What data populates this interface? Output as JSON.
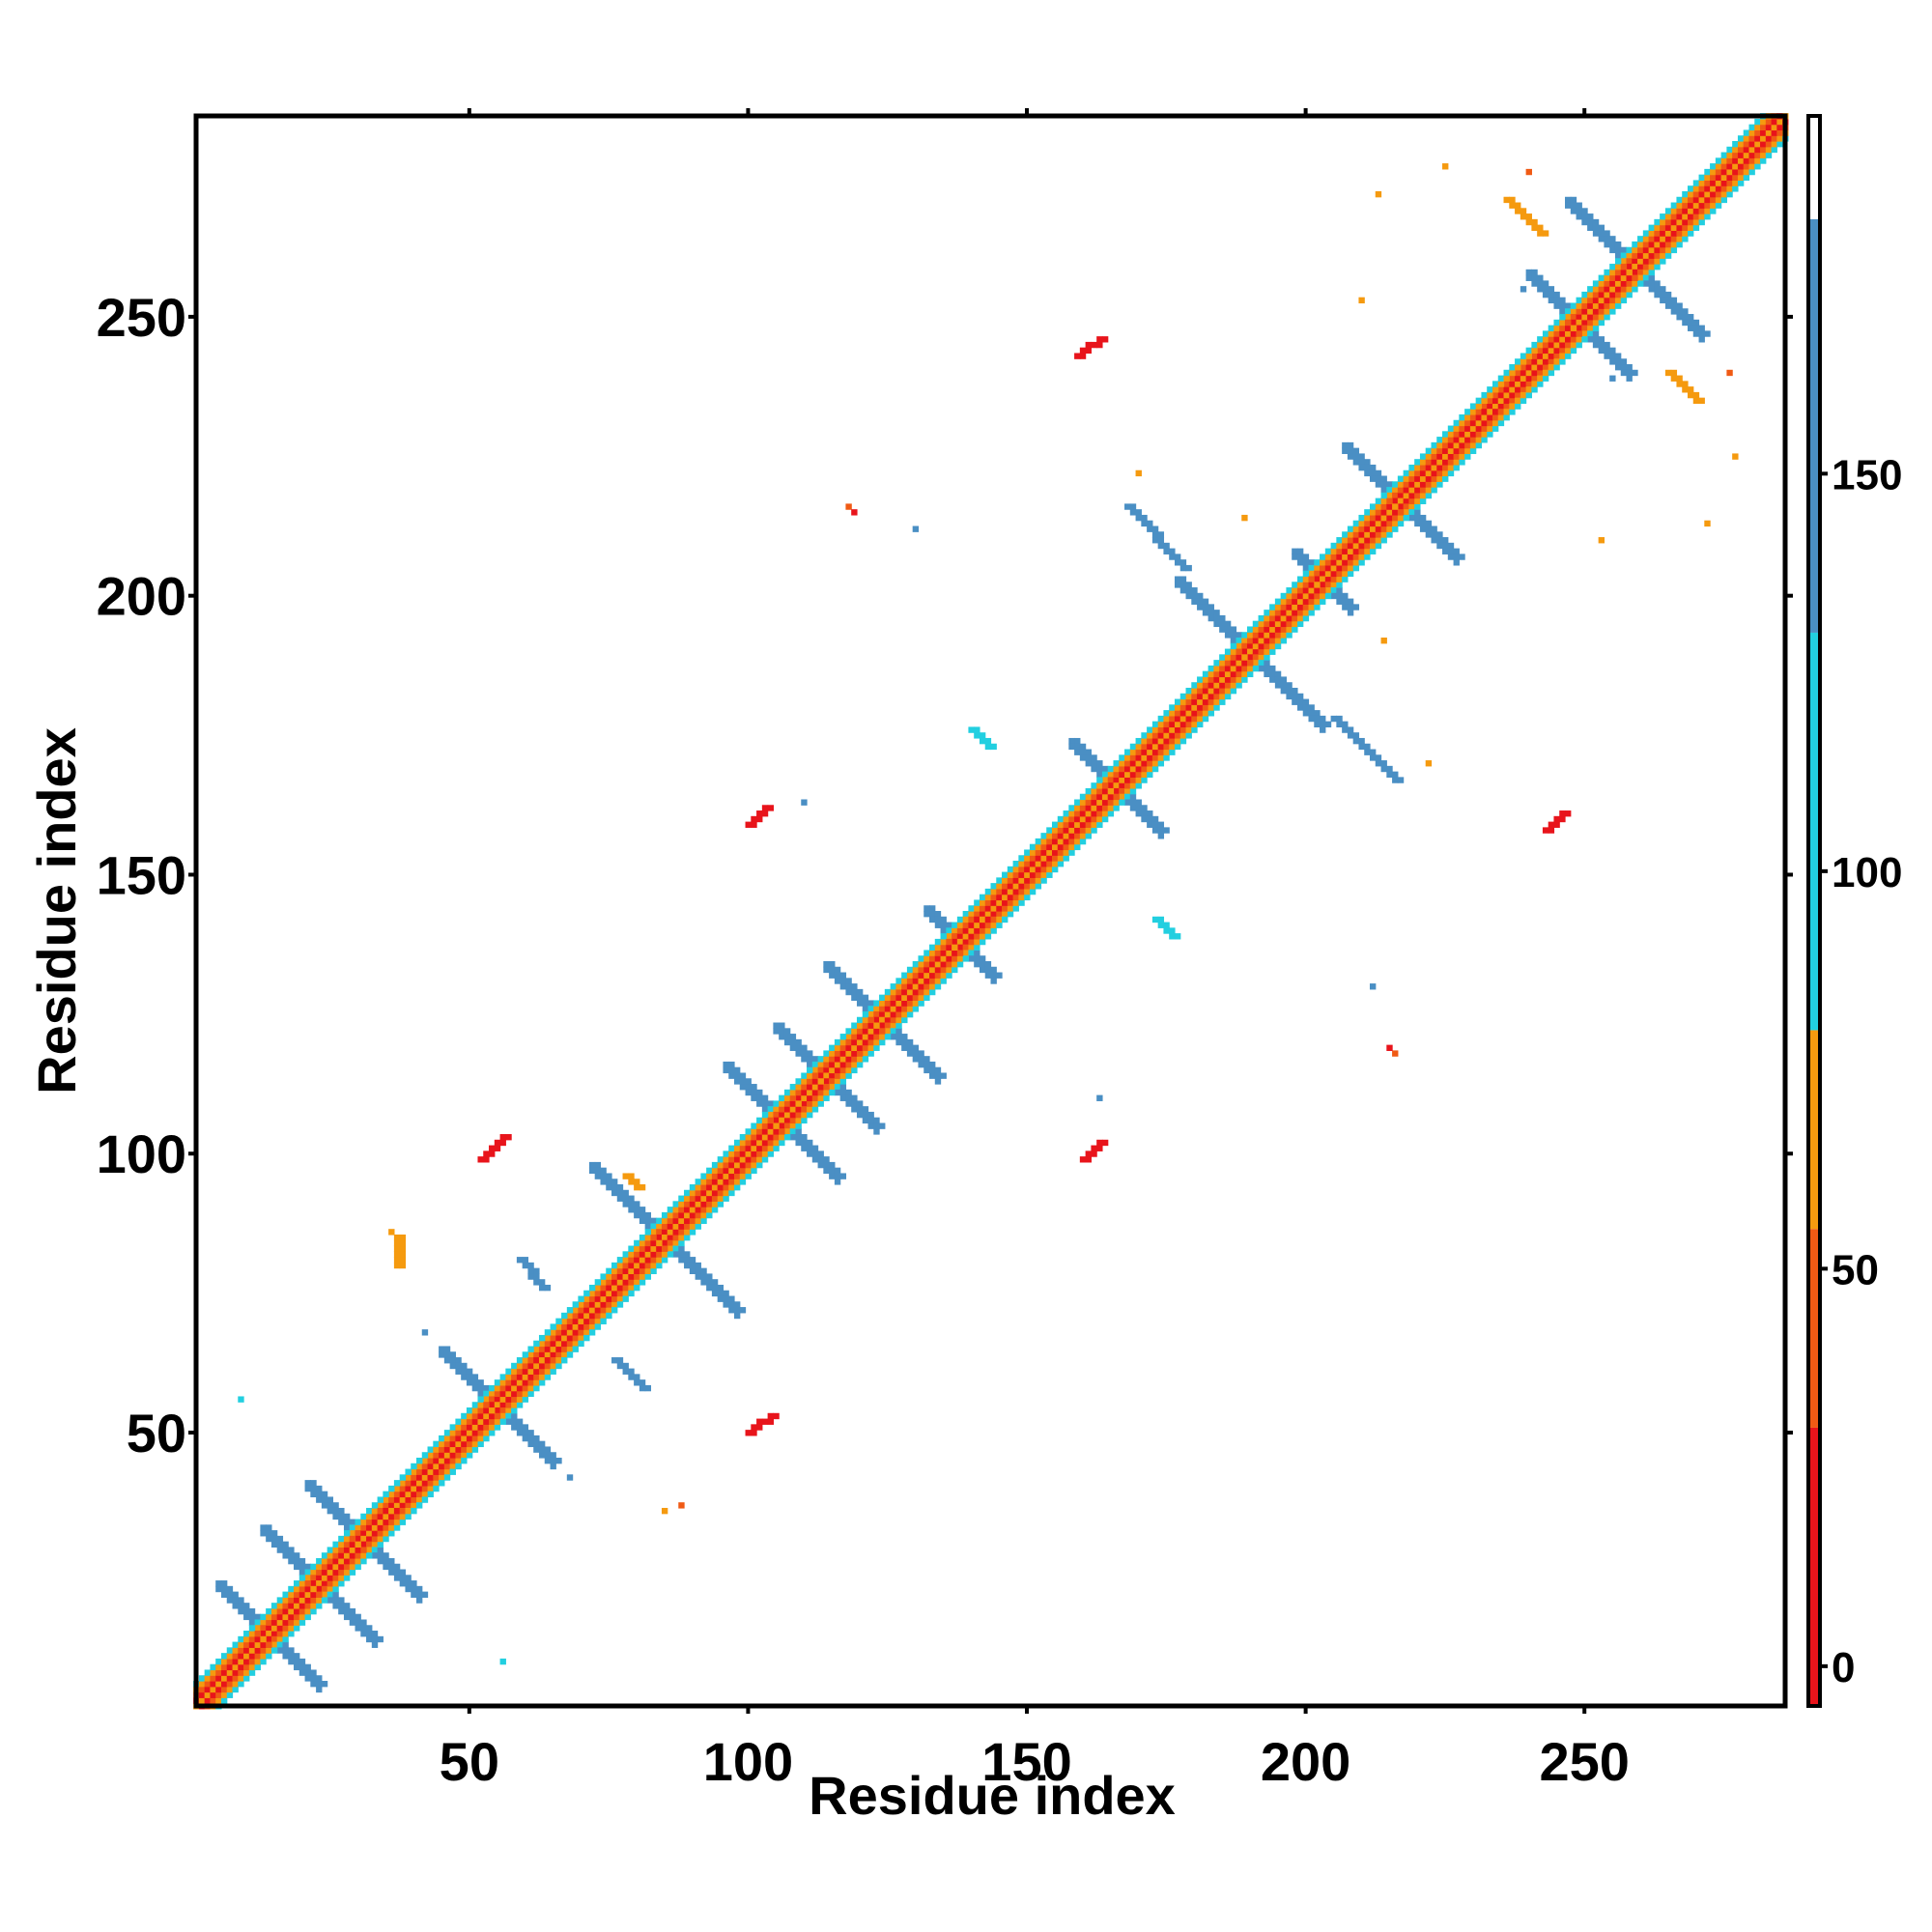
{
  "chart_data": {
    "type": "heatmap",
    "title": "",
    "xlabel": "Residue index",
    "ylabel": "Residue index",
    "xlim": [
      1,
      286
    ],
    "ylim": [
      1,
      286
    ],
    "x_ticks": [
      50,
      100,
      150,
      200,
      250
    ],
    "y_ticks": [
      50,
      100,
      150,
      200,
      250
    ],
    "grid": false,
    "colorbar": {
      "range": [
        -5,
        195
      ],
      "ticks": [
        0,
        50,
        100,
        150
      ],
      "segments": [
        {
          "from": -5,
          "to": 30,
          "color": "#e8141b"
        },
        {
          "from": 30,
          "to": 55,
          "color": "#f05a14"
        },
        {
          "from": 55,
          "to": 80,
          "color": "#f59a0f"
        },
        {
          "from": 80,
          "to": 130,
          "color": "#22cfe0"
        },
        {
          "from": 130,
          "to": 182,
          "color": "#4a8fc4"
        },
        {
          "from": 182,
          "to": 195,
          "color": "#ffffff"
        }
      ]
    },
    "diagonal": {
      "from": 1,
      "to": 286,
      "bands": [
        {
          "offset": 0,
          "value": 55
        },
        {
          "offset": 1,
          "value": 5
        },
        {
          "offset": 2,
          "value": 40
        },
        {
          "offset": 3,
          "value": 65
        },
        {
          "offset": 4,
          "value": 95
        }
      ]
    },
    "antiparallel_contacts": [
      {
        "center": [
          14,
          14
        ],
        "half_length": 9,
        "value": 150
      },
      {
        "center": [
          23,
          23
        ],
        "half_length": 10,
        "value": 150
      },
      {
        "center": [
          31,
          31
        ],
        "half_length": 10,
        "value": 150
      },
      {
        "center": [
          55,
          55
        ],
        "half_length": 10,
        "value": 150
      },
      {
        "center": [
          85,
          85
        ],
        "half_length": 13,
        "value": 140
      },
      {
        "center": [
          106,
          106
        ],
        "half_length": 10,
        "value": 145
      },
      {
        "center": [
          114,
          114
        ],
        "half_length": 9,
        "value": 145
      },
      {
        "center": [
          124,
          124
        ],
        "half_length": 10,
        "value": 145
      },
      {
        "center": [
          138,
          138
        ],
        "half_length": 6,
        "value": 145
      },
      {
        "center": [
          166,
          166
        ],
        "half_length": 8,
        "value": 150
      },
      {
        "center": [
          190,
          190
        ],
        "half_length": 13,
        "value": 150
      },
      {
        "center": [
          203,
          203
        ],
        "half_length": 5,
        "value": 145
      },
      {
        "center": [
          217,
          217
        ],
        "half_length": 10,
        "value": 150
      },
      {
        "center": [
          249,
          249
        ],
        "half_length": 9,
        "value": 150
      },
      {
        "center": [
          259,
          259
        ],
        "half_length": 12,
        "value": 150
      }
    ],
    "parallel_contacts": [
      {
        "start": [
          37,
          37
        ],
        "end": [
          46,
          46
        ],
        "width": 3,
        "value": 110
      },
      {
        "start": [
          64,
          64
        ],
        "end": [
          77,
          77
        ],
        "width": 3,
        "value": 110
      },
      {
        "start": [
          143,
          143
        ],
        "end": [
          155,
          155
        ],
        "width": 4,
        "value": 110
      },
      {
        "start": [
          234,
          234
        ],
        "end": [
          244,
          244
        ],
        "width": 2,
        "value": 110
      }
    ],
    "offdiag_contacts": [
      {
        "start": [
          59,
          81
        ],
        "end": [
          63,
          76
        ],
        "value": 145
      },
      {
        "start": [
          76,
          63
        ],
        "end": [
          81,
          58
        ],
        "value": 145
      },
      {
        "start": [
          168,
          216
        ],
        "end": [
          178,
          205
        ],
        "value": 145
      },
      {
        "start": [
          205,
          178
        ],
        "end": [
          216,
          167
        ],
        "value": 145
      },
      {
        "start": [
          140,
          176
        ],
        "end": [
          143,
          173
        ],
        "value": 115
      },
      {
        "start": [
          173,
          142
        ],
        "end": [
          176,
          139
        ],
        "value": 115
      },
      {
        "start": [
          52,
          99
        ],
        "end": [
          56,
          103
        ],
        "value": 10
      },
      {
        "start": [
          100,
          50
        ],
        "end": [
          104,
          53
        ],
        "value": 10
      },
      {
        "start": [
          160,
          99
        ],
        "end": [
          163,
          102
        ],
        "value": 10
      },
      {
        "start": [
          100,
          159
        ],
        "end": [
          103,
          162
        ],
        "value": 10
      },
      {
        "start": [
          159,
          243
        ],
        "end": [
          163,
          246
        ],
        "value": 10
      },
      {
        "start": [
          243,
          158
        ],
        "end": [
          246,
          161
        ],
        "value": 10
      },
      {
        "start": [
          236,
          271
        ],
        "end": [
          242,
          265
        ],
        "value": 60
      },
      {
        "start": [
          265,
          240
        ],
        "end": [
          270,
          235
        ],
        "value": 60
      },
      {
        "start": [
          37,
          80
        ],
        "end": [
          37,
          85
        ],
        "value": 60
      },
      {
        "start": [
          80,
          94
        ],
        "end": [
          78,
          96
        ],
        "value": 60
      }
    ],
    "scatter_points": [
      [
        56,
        9,
        110
      ],
      [
        9,
        56,
        110
      ],
      [
        85,
        36,
        60
      ],
      [
        88,
        37,
        40
      ],
      [
        36,
        86,
        60
      ],
      [
        189,
        214,
        60
      ],
      [
        214,
        192,
        60
      ],
      [
        255,
        239,
        130
      ],
      [
        239,
        255,
        130
      ],
      [
        222,
        170,
        60
      ],
      [
        170,
        222,
        60
      ],
      [
        118,
        216,
        50
      ],
      [
        216,
        118,
        50
      ],
      [
        130,
        212,
        150
      ],
      [
        212,
        130,
        150
      ],
      [
        110,
        109,
        20
      ],
      [
        109,
        110,
        20
      ],
      [
        121,
        118,
        50
      ],
      [
        118,
        121,
        50
      ],
      [
        68,
        42,
        140
      ],
      [
        42,
        68,
        140
      ],
      [
        240,
        276,
        50
      ],
      [
        276,
        240,
        50
      ],
      [
        225,
        277,
        60
      ],
      [
        277,
        225,
        60
      ],
      [
        272,
        213,
        60
      ],
      [
        213,
        272,
        60
      ],
      [
        163,
        110,
        150
      ],
      [
        110,
        163,
        150
      ],
      [
        215,
        119,
        20
      ],
      [
        119,
        215,
        20
      ],
      [
        253,
        210,
        60
      ],
      [
        210,
        253,
        60
      ]
    ],
    "background_value": 190
  }
}
